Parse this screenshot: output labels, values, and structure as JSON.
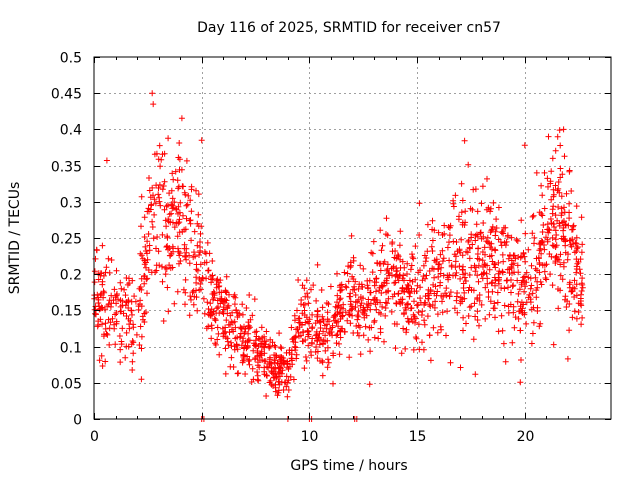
{
  "chart_data": {
    "type": "scatter",
    "title": "Day 116 of 2025, SRMTID for receiver cn57",
    "xlabel": "GPS time / hours",
    "ylabel": "SRMTID / TECUs",
    "xlim": [
      0,
      24
    ],
    "ylim": [
      0,
      0.5
    ],
    "xticks": [
      0,
      5,
      10,
      15,
      20
    ],
    "xtick_labels": [
      "0",
      "5",
      "10",
      "15",
      "20"
    ],
    "yticks": [
      0,
      0.05,
      0.1,
      0.15,
      0.2,
      0.25,
      0.3,
      0.35,
      0.4,
      0.45,
      0.5
    ],
    "ytick_labels": [
      "0",
      "0.05",
      "0.1",
      "0.15",
      "0.2",
      "0.25",
      "0.3",
      "0.35",
      "0.4",
      "0.45",
      "0.5"
    ],
    "grid": true,
    "marker": "+",
    "color": "#ff0000",
    "series": [
      {
        "name": "SRMTID",
        "trend_x": [
          0,
          0.5,
          1,
          1.5,
          2,
          2.3,
          2.6,
          3,
          3.5,
          4,
          4.5,
          5,
          5.5,
          6,
          6.5,
          7,
          7.5,
          8,
          8.5,
          9,
          9.5,
          10,
          10.5,
          11,
          11.5,
          12,
          12.5,
          13,
          13.5,
          14,
          14.5,
          15,
          15.5,
          16,
          16.5,
          17,
          17.5,
          18,
          18.5,
          19,
          19.5,
          20,
          20.5,
          21,
          21.5,
          22,
          22.5
        ],
        "trend_y": [
          0.16,
          0.17,
          0.15,
          0.14,
          0.13,
          0.2,
          0.27,
          0.3,
          0.27,
          0.28,
          0.24,
          0.2,
          0.17,
          0.14,
          0.12,
          0.11,
          0.1,
          0.08,
          0.07,
          0.07,
          0.13,
          0.14,
          0.12,
          0.13,
          0.15,
          0.17,
          0.15,
          0.17,
          0.18,
          0.19,
          0.17,
          0.17,
          0.18,
          0.19,
          0.21,
          0.22,
          0.22,
          0.22,
          0.21,
          0.2,
          0.19,
          0.19,
          0.2,
          0.24,
          0.29,
          0.26,
          0.2
        ],
        "trend_spread": [
          0.04,
          0.045,
          0.04,
          0.04,
          0.04,
          0.06,
          0.07,
          0.07,
          0.06,
          0.06,
          0.05,
          0.05,
          0.04,
          0.035,
          0.035,
          0.03,
          0.03,
          0.025,
          0.02,
          0.02,
          0.03,
          0.03,
          0.03,
          0.03,
          0.035,
          0.04,
          0.04,
          0.04,
          0.045,
          0.045,
          0.04,
          0.045,
          0.05,
          0.055,
          0.06,
          0.06,
          0.06,
          0.06,
          0.055,
          0.05,
          0.05,
          0.05,
          0.055,
          0.06,
          0.06,
          0.06,
          0.05
        ],
        "x_start": 0,
        "x_end": 22.7,
        "samples": 1800,
        "zero_markers_x": [
          5.0,
          5.1,
          9.0,
          10.0,
          10.1,
          12.1,
          12.2
        ],
        "peaks": [
          {
            "x": 2.7,
            "y": 0.45
          },
          {
            "x": 2.75,
            "y": 0.435
          },
          {
            "x": 5.0,
            "y": 0.385
          },
          {
            "x": 0.6,
            "y": 0.357
          },
          {
            "x": 20.0,
            "y": 0.378
          },
          {
            "x": 21.1,
            "y": 0.39
          },
          {
            "x": 21.8,
            "y": 0.4
          },
          {
            "x": 21.3,
            "y": 0.36
          },
          {
            "x": 2.2,
            "y": 0.055
          },
          {
            "x": 8.8,
            "y": 0.04
          },
          {
            "x": 12.8,
            "y": 0.048
          },
          {
            "x": 22.0,
            "y": 0.083
          }
        ]
      }
    ]
  }
}
